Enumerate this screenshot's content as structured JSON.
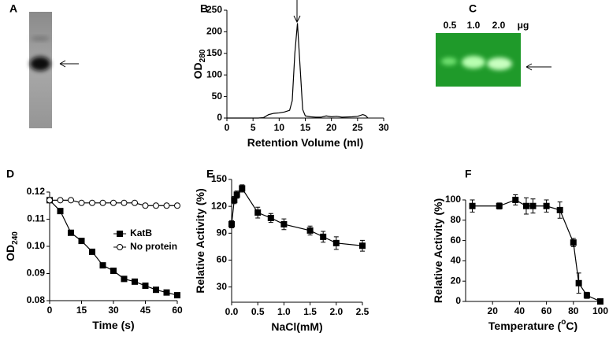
{
  "gels": {
    "a": {
      "panel": "A"
    },
    "c": {
      "panel": "C",
      "lanes": [
        "0.5",
        "1.0",
        "2.0"
      ],
      "unit": "μg"
    }
  },
  "chart_data": [
    {
      "type": "line",
      "panel": "B",
      "ylabel": "OD",
      "ylabel_sub": "280",
      "xlabel": "Retention Volume (ml)",
      "x": [
        0,
        2,
        4,
        6,
        7,
        8,
        9,
        10,
        11,
        12,
        12.5,
        13,
        13.5,
        14,
        14.5,
        15,
        16,
        17,
        18,
        19,
        20,
        21,
        22,
        24,
        25,
        26,
        26.5,
        27
      ],
      "series": [
        {
          "color": "#000000",
          "marker": "none",
          "values": [
            0,
            0,
            0,
            0,
            1,
            8,
            11,
            12,
            14,
            18,
            40,
            150,
            220,
            120,
            20,
            5,
            3,
            2,
            2,
            5,
            3,
            4,
            2,
            3,
            4,
            8,
            6,
            0
          ]
        }
      ],
      "xlim": [
        0,
        30
      ],
      "ylim": [
        0,
        250
      ],
      "xticks": [
        0,
        5,
        10,
        15,
        20,
        25,
        30
      ],
      "yticks": [
        0,
        50,
        100,
        150,
        200,
        250
      ]
    },
    {
      "type": "line",
      "panel": "D",
      "ylabel": "OD",
      "ylabel_sub": "240",
      "xlabel": "Time (s)",
      "x": [
        0,
        5,
        10,
        15,
        20,
        25,
        30,
        35,
        40,
        45,
        50,
        55,
        60
      ],
      "series": [
        {
          "name": "KatB",
          "color": "#000000",
          "marker": "square",
          "filled": true,
          "values": [
            0.117,
            0.113,
            0.105,
            0.102,
            0.098,
            0.093,
            0.091,
            0.088,
            0.087,
            0.0855,
            0.084,
            0.083,
            0.082
          ]
        },
        {
          "name": "No protein",
          "color": "#000000",
          "marker": "circle",
          "filled": false,
          "values": [
            0.117,
            0.117,
            0.117,
            0.116,
            0.116,
            0.116,
            0.116,
            0.116,
            0.116,
            0.115,
            0.115,
            0.115,
            0.115
          ]
        }
      ],
      "legend": "center-right",
      "xlim": [
        0,
        60
      ],
      "ylim": [
        0.08,
        0.12
      ],
      "xticks": [
        0,
        15,
        30,
        45,
        60
      ],
      "yticks": [
        0.08,
        0.09,
        {
          "value": 0.1,
          "label": "0.10"
        },
        0.11,
        0.12
      ]
    },
    {
      "type": "line",
      "panel": "E",
      "ylabel": "Relative Activity (%)",
      "xlabel": "NaCl(mM)",
      "x": [
        0,
        0.05,
        0.1,
        0.2,
        0.5,
        0.75,
        1,
        1.5,
        1.75,
        2,
        2.5
      ],
      "series": [
        {
          "color": "#000000",
          "marker": "square",
          "filled": true,
          "values": [
            100,
            127,
            133,
            140,
            113,
            107,
            100,
            93,
            86,
            79,
            76
          ],
          "errors": [
            4,
            4,
            4,
            4,
            6,
            5,
            6,
            5,
            6,
            7,
            6
          ]
        }
      ],
      "xlim": [
        0,
        2.5
      ],
      "ylim": [
        13,
        150
      ],
      "xticks": [
        {
          "value": 0,
          "label": "0.0"
        },
        0.5,
        {
          "value": 1,
          "label": "1.0"
        },
        1.5,
        {
          "value": 2,
          "label": "2.0"
        },
        2.5
      ],
      "yticks": [
        30,
        60,
        90,
        120,
        150
      ]
    },
    {
      "type": "line",
      "panel": "F",
      "ylabel": "Relative Activity (%)",
      "xlabel": "Temperature (",
      "xlabel_sup": "o",
      "xlabel_tail": "C)",
      "x": [
        5,
        25,
        37,
        45,
        50,
        60,
        70,
        80,
        84,
        90,
        100
      ],
      "series": [
        {
          "color": "#000000",
          "marker": "square",
          "filled": true,
          "values": [
            94,
            94,
            100,
            94,
            94,
            94,
            90,
            58,
            18,
            6,
            0
          ],
          "errors": [
            6,
            3,
            5,
            8,
            7,
            6,
            8,
            4,
            10,
            3,
            1
          ]
        }
      ],
      "xlim": [
        0,
        100
      ],
      "ylim": [
        0,
        100
      ],
      "xticks": [
        20,
        40,
        60,
        80,
        100
      ],
      "yticks": [
        0,
        20,
        40,
        60,
        80,
        100
      ]
    }
  ]
}
